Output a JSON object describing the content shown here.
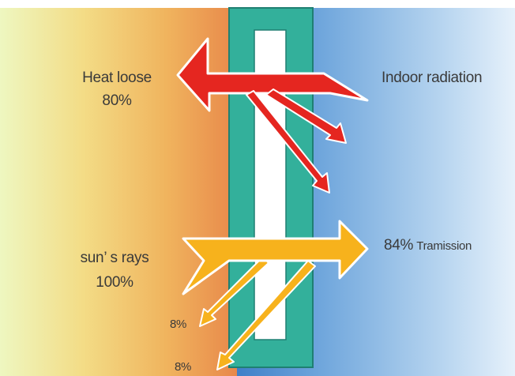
{
  "labels": {
    "heat_loose": "Heat loose",
    "heat_loose_pct": "80%",
    "indoor_radiation": "Indoor radiation",
    "suns_rays": "sun’ s rays",
    "suns_rays_pct": "100%",
    "transmission_pct": "84%",
    "transmission_word": "Tramission",
    "reflect_1": "8%",
    "reflect_2": "8%"
  },
  "colors": {
    "outdoor_gradient": [
      "#eef7c0",
      "#f3dc86",
      "#f0b45e",
      "#e8884a"
    ],
    "indoor_gradient": [
      "#3f7fc8",
      "#6fa6dc",
      "#b9d6f0",
      "#e6f1fb"
    ],
    "glass_frame": "#33b09b",
    "glass_gap": "#ffffff",
    "heat_arrow": "#e52620",
    "sun_arrow": "#f7b21c",
    "arrow_outline": "#ffffff"
  }
}
